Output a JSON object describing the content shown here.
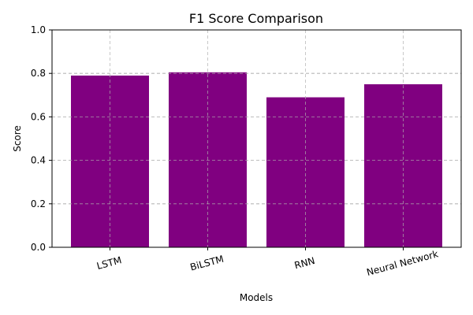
{
  "chart_data": {
    "type": "bar",
    "title": "F1 Score Comparison",
    "xlabel": "Models",
    "ylabel": "Score",
    "categories": [
      "LSTM",
      "BiLSTM",
      "RNN",
      "Neural Network"
    ],
    "values": [
      0.79,
      0.805,
      0.69,
      0.75
    ],
    "ylim": [
      0,
      1.0
    ],
    "yticks": [
      "0.0",
      "0.2",
      "0.4",
      "0.6",
      "0.8",
      "1.0"
    ],
    "grid": true,
    "bar_color": "#800080",
    "xtick_rotation_deg": -15
  }
}
